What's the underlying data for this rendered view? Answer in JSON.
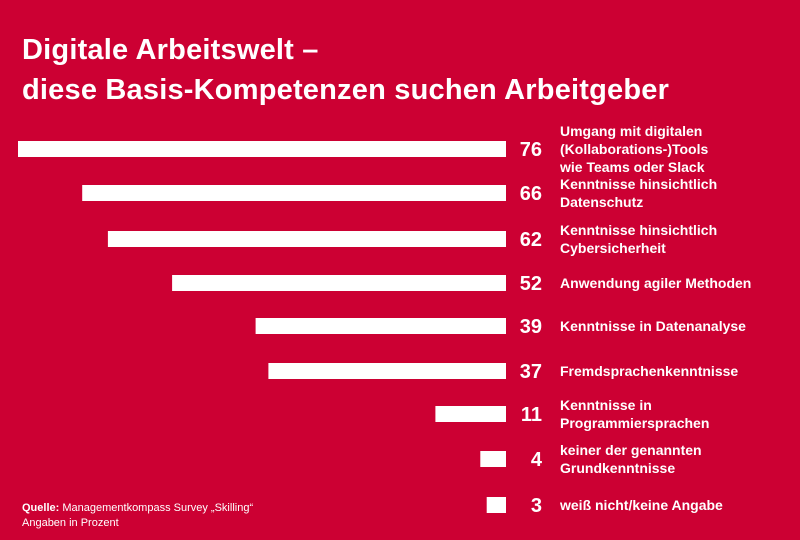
{
  "title": {
    "line1": "Digitale Arbeitswelt –",
    "line2": "diese Basis-Kompetenzen suchen Arbeitgeber"
  },
  "source": {
    "label": "Quelle:",
    "text": "Managementkompass Survey „Skilling“",
    "note": "Angaben in Prozent"
  },
  "colors": {
    "background": "#cc0033",
    "bar": "#ffffff",
    "text": "#ffffff"
  },
  "chart_data": {
    "type": "bar",
    "orientation": "horizontal",
    "direction": "bars extend leftward from a common right baseline",
    "categories": [
      "Umgang mit digitalen (Kollaborations-)Tools wie Teams oder Slack",
      "Kenntnisse hinsichtlich Datenschutz",
      "Kenntnisse hinsichtlich Cybersicherheit",
      "Anwendung agiler Methoden",
      "Kenntnisse in Datenanalyse",
      "Fremdsprachenkenntnisse",
      "Kenntnisse in Programmiersprachen",
      "keiner der genannten Grundkenntnisse",
      "weiß nicht/keine Angabe"
    ],
    "category_lines": [
      [
        "Umgang mit digitalen",
        "(Kollaborations-)Tools",
        "wie Teams oder Slack"
      ],
      [
        "Kenntnisse hinsichtlich",
        "Datenschutz"
      ],
      [
        "Kenntnisse hinsichtlich",
        "Cybersicherheit"
      ],
      [
        "Anwendung agiler Methoden"
      ],
      [
        "Kenntnisse in Datenanalyse"
      ],
      [
        "Fremdsprachenkenntnisse"
      ],
      [
        "Kenntnisse in",
        "Programmiersprachen"
      ],
      [
        "keiner der genannten",
        "Grundkenntnisse"
      ],
      [
        "weiß nicht/keine Angabe"
      ]
    ],
    "values": [
      76,
      66,
      62,
      52,
      39,
      37,
      11,
      4,
      3
    ],
    "value_labels": [
      "76",
      "66",
      "62",
      "52",
      "39",
      "37",
      "11",
      "4",
      "3"
    ],
    "unit": "Prozent",
    "xlim": [
      0,
      76
    ],
    "grid": false,
    "legend": "none"
  }
}
